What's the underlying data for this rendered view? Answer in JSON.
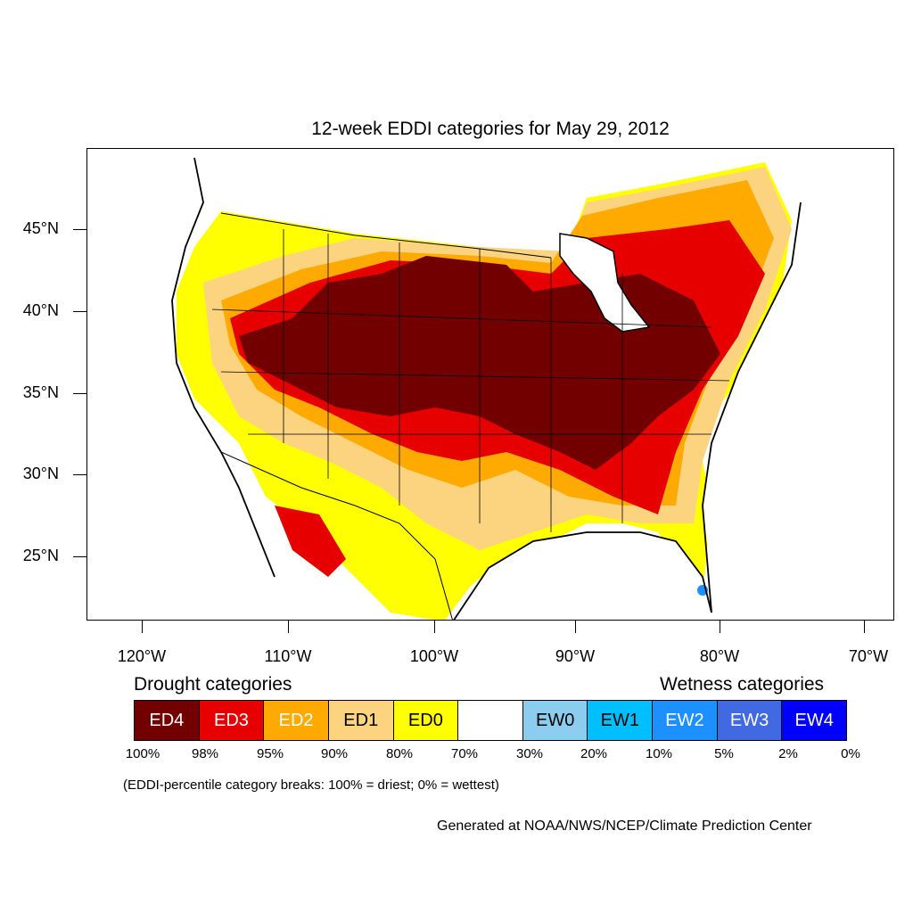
{
  "title": "12-week EDDI categories for May 29, 2012",
  "lat_labels": [
    "45°N",
    "40°N",
    "35°N",
    "30°N",
    "25°N"
  ],
  "lon_labels": [
    "120°W",
    "110°W",
    "100°W",
    "90°W",
    "80°W",
    "70°W"
  ],
  "legend": {
    "drought_heading": "Drought categories",
    "wetness_heading": "Wetness categories",
    "categories": [
      {
        "label": "ED4",
        "color": "#730000",
        "text_color": "#ffffff"
      },
      {
        "label": "ED3",
        "color": "#e60000",
        "text_color": "#ffffff"
      },
      {
        "label": "ED2",
        "color": "#ffaa00",
        "text_color": "#ffffff"
      },
      {
        "label": "ED1",
        "color": "#fcd37f",
        "text_color": "#000000"
      },
      {
        "label": "ED0",
        "color": "#ffff00",
        "text_color": "#000000"
      },
      {
        "label": "",
        "color": "#ffffff",
        "text_color": "#000000"
      },
      {
        "label": "EW0",
        "color": "#8ccdef",
        "text_color": "#000000"
      },
      {
        "label": "EW1",
        "color": "#00bfff",
        "text_color": "#000000"
      },
      {
        "label": "EW2",
        "color": "#1d90ff",
        "text_color": "#ffffff"
      },
      {
        "label": "EW3",
        "color": "#4169e1",
        "text_color": "#ffffff"
      },
      {
        "label": "EW4",
        "color": "#0000ff",
        "text_color": "#ffffff"
      }
    ],
    "breaks": [
      "100%",
      "98%",
      "95%",
      "90%",
      "80%",
      "70%",
      "30%",
      "20%",
      "10%",
      "5%",
      "2%",
      "0%"
    ]
  },
  "note": "(EDDI-percentile category breaks: 100% = driest; 0% = wettest)",
  "credit": "Generated at NOAA/NWS/NCEP/Climate Prediction Center"
}
